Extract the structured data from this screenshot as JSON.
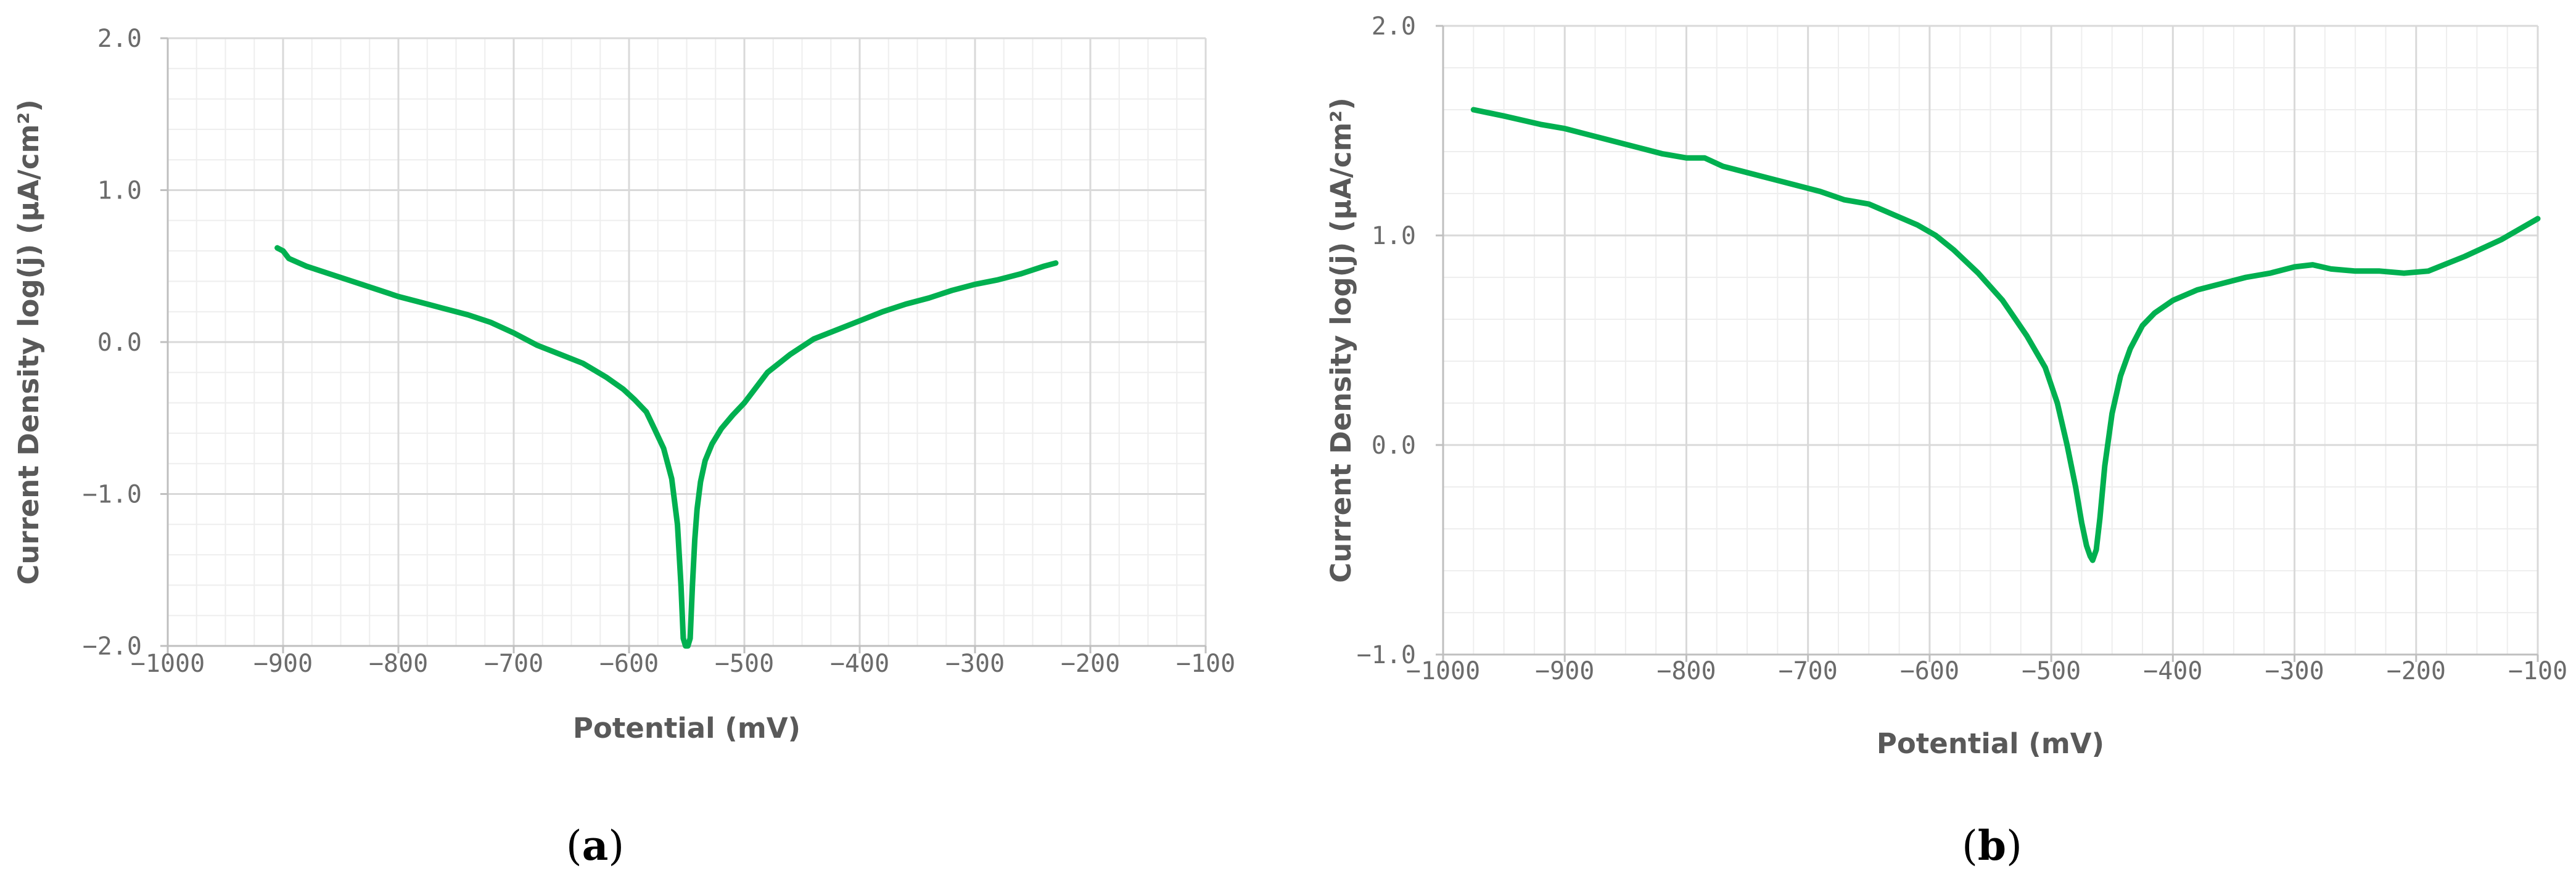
{
  "chart_data": [
    {
      "type": "line",
      "panel_label": "a",
      "xlabel": "Potential (mV)",
      "ylabel": "Current Density log(j) (μA/cm²)",
      "xlim": [
        -1000,
        -100
      ],
      "ylim": [
        -2.0,
        2.0
      ],
      "x_ticks": [
        "−1000",
        "−900",
        "−800",
        "−700",
        "−600",
        "−500",
        "−400",
        "−300",
        "−200",
        "−100"
      ],
      "y_ticks": [
        "−2.0",
        "−1.0",
        "0.0",
        "1.0",
        "2.0"
      ],
      "grid": true,
      "series": [
        {
          "color": "#00b050",
          "x": [
            -905,
            -900,
            -895,
            -880,
            -860,
            -840,
            -820,
            -800,
            -780,
            -760,
            -740,
            -720,
            -700,
            -680,
            -660,
            -640,
            -620,
            -605,
            -595,
            -585,
            -578,
            -570,
            -563,
            -558,
            -555,
            -553,
            -551,
            -549,
            -547,
            -545,
            -543,
            -541,
            -538,
            -534,
            -528,
            -520,
            -510,
            -500,
            -490,
            -480,
            -460,
            -440,
            -420,
            -400,
            -380,
            -360,
            -340,
            -320,
            -300,
            -280,
            -260,
            -240,
            -230
          ],
          "y": [
            0.62,
            0.6,
            0.55,
            0.5,
            0.45,
            0.4,
            0.35,
            0.3,
            0.26,
            0.22,
            0.18,
            0.13,
            0.06,
            -0.02,
            -0.08,
            -0.14,
            -0.23,
            -0.31,
            -0.38,
            -0.46,
            -0.57,
            -0.7,
            -0.9,
            -1.2,
            -1.6,
            -1.95,
            -2.0,
            -2.0,
            -1.95,
            -1.6,
            -1.3,
            -1.1,
            -0.92,
            -0.78,
            -0.67,
            -0.57,
            -0.48,
            -0.4,
            -0.3,
            -0.2,
            -0.08,
            0.02,
            0.08,
            0.14,
            0.2,
            0.25,
            0.29,
            0.34,
            0.38,
            0.41,
            0.45,
            0.5,
            0.52
          ]
        }
      ]
    },
    {
      "type": "line",
      "panel_label": "b",
      "xlabel": "Potential (mV)",
      "ylabel": "Current Density log(j) (μA/cm²)",
      "xlim": [
        -1000,
        -100
      ],
      "ylim": [
        -1.0,
        2.0
      ],
      "x_ticks": [
        "−1000",
        "−900",
        "−800",
        "−700",
        "−600",
        "−500",
        "−400",
        "−300",
        "−200",
        "−100"
      ],
      "y_ticks": [
        "−1.0",
        "0.0",
        "1.0",
        "2.0"
      ],
      "grid": true,
      "series": [
        {
          "color": "#00b050",
          "x": [
            -975,
            -950,
            -920,
            -900,
            -880,
            -860,
            -840,
            -820,
            -800,
            -785,
            -770,
            -750,
            -730,
            -710,
            -690,
            -670,
            -650,
            -630,
            -610,
            -595,
            -580,
            -560,
            -540,
            -520,
            -505,
            -495,
            -487,
            -480,
            -475,
            -471,
            -468,
            -466,
            -463,
            -460,
            -456,
            -450,
            -443,
            -435,
            -425,
            -415,
            -400,
            -380,
            -360,
            -340,
            -320,
            -300,
            -285,
            -270,
            -250,
            -230,
            -210,
            -190,
            -160,
            -130,
            -100
          ],
          "y": [
            1.6,
            1.57,
            1.53,
            1.51,
            1.48,
            1.45,
            1.42,
            1.39,
            1.37,
            1.37,
            1.33,
            1.3,
            1.27,
            1.24,
            1.21,
            1.17,
            1.15,
            1.1,
            1.05,
            1.0,
            0.93,
            0.82,
            0.69,
            0.52,
            0.37,
            0.2,
            0.0,
            -0.2,
            -0.37,
            -0.48,
            -0.53,
            -0.55,
            -0.5,
            -0.35,
            -0.1,
            0.15,
            0.33,
            0.46,
            0.57,
            0.63,
            0.69,
            0.74,
            0.77,
            0.8,
            0.82,
            0.85,
            0.86,
            0.84,
            0.83,
            0.83,
            0.82,
            0.83,
            0.9,
            0.98,
            1.08
          ]
        }
      ]
    }
  ]
}
